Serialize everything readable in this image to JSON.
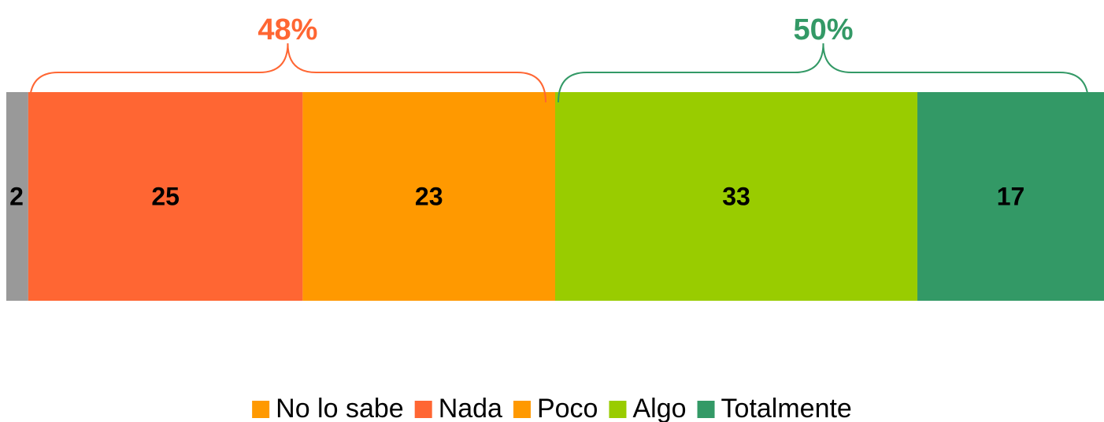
{
  "chart_data": {
    "type": "bar",
    "orientation": "horizontal",
    "stacked": true,
    "categories": [
      ""
    ],
    "series": [
      {
        "name": "No lo sabe",
        "values": [
          2
        ],
        "color": "#999999"
      },
      {
        "name": "Nada",
        "values": [
          25
        ],
        "color": "#ff6633"
      },
      {
        "name": "Poco",
        "values": [
          23
        ],
        "color": "#ff9900"
      },
      {
        "name": "Algo",
        "values": [
          33
        ],
        "color": "#99cc00"
      },
      {
        "name": "Totalmente",
        "values": [
          17
        ],
        "color": "#339966"
      }
    ],
    "data_labels": [
      "2",
      "25",
      "23",
      "33",
      "17"
    ],
    "groups": [
      {
        "label": "48%",
        "series": [
          "Nada",
          "Poco"
        ],
        "color": "#ff6633"
      },
      {
        "label": "50%",
        "series": [
          "Algo",
          "Totalmente"
        ],
        "color": "#339966"
      }
    ],
    "legend": {
      "position": "bottom",
      "legend_swatch_colors": [
        "#ff9900",
        "#ff6633",
        "#ff9900",
        "#99cc00",
        "#339966"
      ]
    },
    "xlim": [
      0,
      100
    ],
    "grid": false,
    "title": "",
    "xlabel": "",
    "ylabel": ""
  }
}
